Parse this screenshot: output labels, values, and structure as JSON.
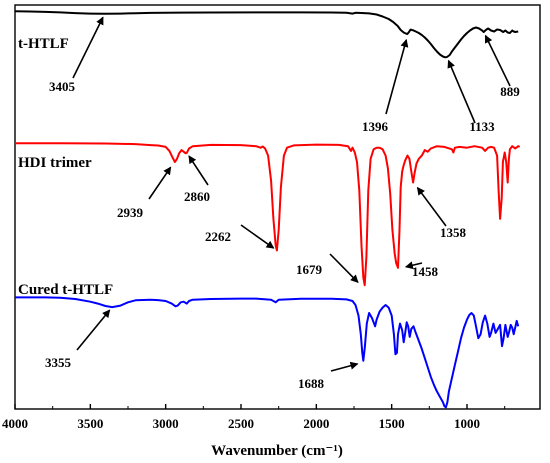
{
  "chart_data": {
    "type": "line",
    "xlabel": "Wavenumber (cm⁻¹)",
    "xlim": [
      4000,
      650
    ],
    "x_reversed": true,
    "y_ticks_shown": false,
    "grid": false,
    "legend": "none",
    "xticks": [
      4000,
      3500,
      3000,
      2500,
      2000,
      1500,
      1000
    ],
    "series": [
      {
        "name": "t-HTLF",
        "color": "#000000",
        "points": [
          [
            4000,
            0.35
          ],
          [
            3900,
            0.5
          ],
          [
            3800,
            0.9
          ],
          [
            3700,
            1.4
          ],
          [
            3600,
            2.1
          ],
          [
            3500,
            2.6
          ],
          [
            3405,
            2.8
          ],
          [
            3300,
            2.6
          ],
          [
            3200,
            2.2
          ],
          [
            3100,
            1.9
          ],
          [
            3000,
            1.7
          ],
          [
            2900,
            1.6
          ],
          [
            2700,
            1.5
          ],
          [
            2400,
            1.4
          ],
          [
            2100,
            1.4
          ],
          [
            1900,
            1.5
          ],
          [
            1800,
            1.7
          ],
          [
            1760,
            2.6
          ],
          [
            1740,
            1.8
          ],
          [
            1700,
            2.0
          ],
          [
            1650,
            2.4
          ],
          [
            1600,
            3.5
          ],
          [
            1560,
            5.5
          ],
          [
            1520,
            8.0
          ],
          [
            1490,
            11.0
          ],
          [
            1460,
            15.0
          ],
          [
            1440,
            19.0
          ],
          [
            1420,
            21.5
          ],
          [
            1405,
            22.6
          ],
          [
            1396,
            23.0
          ],
          [
            1385,
            21.0
          ],
          [
            1375,
            18.6
          ],
          [
            1360,
            19.2
          ],
          [
            1340,
            20.5
          ],
          [
            1320,
            22.0
          ],
          [
            1300,
            24.0
          ],
          [
            1280,
            26.5
          ],
          [
            1260,
            29.5
          ],
          [
            1240,
            33.0
          ],
          [
            1220,
            37.0
          ],
          [
            1200,
            40.5
          ],
          [
            1180,
            43.5
          ],
          [
            1160,
            45.5
          ],
          [
            1145,
            46.3
          ],
          [
            1133,
            46.0
          ],
          [
            1115,
            44.0
          ],
          [
            1100,
            40.5
          ],
          [
            1080,
            36.5
          ],
          [
            1060,
            32.5
          ],
          [
            1040,
            28.5
          ],
          [
            1020,
            25.0
          ],
          [
            1000,
            22.0
          ],
          [
            980,
            19.5
          ],
          [
            960,
            17.5
          ],
          [
            940,
            16.5
          ],
          [
            920,
            17.5
          ],
          [
            900,
            19.5
          ],
          [
            889,
            21.0
          ],
          [
            875,
            19.0
          ],
          [
            860,
            17.5
          ],
          [
            840,
            19.5
          ],
          [
            820,
            20.5
          ],
          [
            800,
            18.5
          ],
          [
            780,
            19.0
          ],
          [
            760,
            21.0
          ],
          [
            745,
            19.5
          ],
          [
            730,
            21.5
          ],
          [
            715,
            22.0
          ],
          [
            700,
            19.5
          ],
          [
            690,
            20.5
          ],
          [
            680,
            21.0
          ],
          [
            660,
            20.5
          ]
        ]
      },
      {
        "name": "HDI trimer",
        "color": "#ff0000",
        "points": [
          [
            4000,
            0.1
          ],
          [
            3700,
            0.1
          ],
          [
            3400,
            0.3
          ],
          [
            3200,
            0.7
          ],
          [
            3100,
            1.3
          ],
          [
            3050,
            1.6
          ],
          [
            3000,
            2.5
          ],
          [
            2975,
            5.0
          ],
          [
            2955,
            9.0
          ],
          [
            2939,
            12.0
          ],
          [
            2925,
            10.0
          ],
          [
            2910,
            6.5
          ],
          [
            2895,
            4.5
          ],
          [
            2880,
            5.5
          ],
          [
            2868,
            6.5
          ],
          [
            2860,
            6.2
          ],
          [
            2845,
            3.5
          ],
          [
            2820,
            2.0
          ],
          [
            2700,
            1.2
          ],
          [
            2500,
            1.3
          ],
          [
            2400,
            2.0
          ],
          [
            2370,
            3.0
          ],
          [
            2355,
            2.2
          ],
          [
            2340,
            3.5
          ],
          [
            2320,
            8.0
          ],
          [
            2300,
            24.0
          ],
          [
            2285,
            48.0
          ],
          [
            2270,
            65.0
          ],
          [
            2262,
            68.0
          ],
          [
            2250,
            55.0
          ],
          [
            2235,
            28.0
          ],
          [
            2215,
            8.0
          ],
          [
            2195,
            3.0
          ],
          [
            2150,
            1.5
          ],
          [
            2000,
            1.0
          ],
          [
            1850,
            1.2
          ],
          [
            1790,
            2.0
          ],
          [
            1770,
            5.0
          ],
          [
            1760,
            3.0
          ],
          [
            1745,
            6.0
          ],
          [
            1730,
            12.0
          ],
          [
            1715,
            30.0
          ],
          [
            1700,
            65.0
          ],
          [
            1688,
            85.0
          ],
          [
            1679,
            90.0
          ],
          [
            1668,
            72.0
          ],
          [
            1655,
            30.0
          ],
          [
            1640,
            10.0
          ],
          [
            1620,
            4.0
          ],
          [
            1600,
            3.0
          ],
          [
            1580,
            3.0
          ],
          [
            1560,
            4.0
          ],
          [
            1540,
            8.0
          ],
          [
            1525,
            16.0
          ],
          [
            1510,
            32.0
          ],
          [
            1495,
            55.0
          ],
          [
            1480,
            70.0
          ],
          [
            1470,
            76.0
          ],
          [
            1458,
            79.0
          ],
          [
            1448,
            55.0
          ],
          [
            1440,
            28.0
          ],
          [
            1430,
            18.0
          ],
          [
            1420,
            14.0
          ],
          [
            1410,
            11.0
          ],
          [
            1395,
            8.0
          ],
          [
            1382,
            10.0
          ],
          [
            1370,
            18.0
          ],
          [
            1358,
            25.0
          ],
          [
            1348,
            19.0
          ],
          [
            1335,
            13.0
          ],
          [
            1320,
            10.0
          ],
          [
            1300,
            8.0
          ],
          [
            1280,
            4.5
          ],
          [
            1260,
            5.5
          ],
          [
            1240,
            3.5
          ],
          [
            1200,
            2.0
          ],
          [
            1150,
            2.5
          ],
          [
            1100,
            4.0
          ],
          [
            1090,
            6.0
          ],
          [
            1080,
            3.0
          ],
          [
            1050,
            2.5
          ],
          [
            1000,
            3.0
          ],
          [
            950,
            2.0
          ],
          [
            900,
            3.0
          ],
          [
            880,
            5.0
          ],
          [
            860,
            3.0
          ],
          [
            840,
            2.5
          ],
          [
            820,
            3.0
          ],
          [
            800,
            8.0
          ],
          [
            790,
            30.0
          ],
          [
            780,
            48.0
          ],
          [
            770,
            35.0
          ],
          [
            762,
            12.0
          ],
          [
            750,
            6.0
          ],
          [
            740,
            12.0
          ],
          [
            730,
            25.0
          ],
          [
            722,
            10.0
          ],
          [
            715,
            4.0
          ],
          [
            700,
            2.0
          ],
          [
            680,
            3.5
          ],
          [
            660,
            2.0
          ],
          [
            650,
            2.5
          ]
        ]
      },
      {
        "name": "Cured t-HTLF",
        "color": "#0000ff",
        "points": [
          [
            4000,
            0.3
          ],
          [
            3800,
            0.3
          ],
          [
            3700,
            0.6
          ],
          [
            3600,
            1.5
          ],
          [
            3500,
            3.5
          ],
          [
            3450,
            5.0
          ],
          [
            3400,
            6.8
          ],
          [
            3355,
            7.6
          ],
          [
            3300,
            6.5
          ],
          [
            3250,
            4.0
          ],
          [
            3200,
            2.5
          ],
          [
            3100,
            2.0
          ],
          [
            3050,
            2.3
          ],
          [
            3000,
            3.0
          ],
          [
            2960,
            5.0
          ],
          [
            2935,
            7.0
          ],
          [
            2920,
            6.5
          ],
          [
            2900,
            4.0
          ],
          [
            2880,
            3.5
          ],
          [
            2860,
            5.0
          ],
          [
            2845,
            3.0
          ],
          [
            2820,
            2.0
          ],
          [
            2700,
            1.5
          ],
          [
            2500,
            1.2
          ],
          [
            2400,
            1.2
          ],
          [
            2300,
            2.0
          ],
          [
            2270,
            4.0
          ],
          [
            2250,
            2.0
          ],
          [
            2100,
            1.3
          ],
          [
            1900,
            1.3
          ],
          [
            1800,
            1.8
          ],
          [
            1760,
            3.0
          ],
          [
            1740,
            6.0
          ],
          [
            1720,
            14.0
          ],
          [
            1705,
            28.0
          ],
          [
            1695,
            42.0
          ],
          [
            1688,
            48.0
          ],
          [
            1678,
            38.0
          ],
          [
            1665,
            20.0
          ],
          [
            1650,
            12.0
          ],
          [
            1630,
            16.0
          ],
          [
            1610,
            22.0
          ],
          [
            1600,
            17.0
          ],
          [
            1580,
            11.0
          ],
          [
            1560,
            8.0
          ],
          [
            1540,
            6.0
          ],
          [
            1520,
            8.0
          ],
          [
            1500,
            14.0
          ],
          [
            1485,
            28.0
          ],
          [
            1475,
            43.0
          ],
          [
            1465,
            42.0
          ],
          [
            1458,
            28.0
          ],
          [
            1445,
            20.0
          ],
          [
            1430,
            25.0
          ],
          [
            1420,
            34.0
          ],
          [
            1410,
            27.0
          ],
          [
            1400,
            19.0
          ],
          [
            1390,
            22.0
          ],
          [
            1380,
            30.0
          ],
          [
            1370,
            24.0
          ],
          [
            1355,
            22.0
          ],
          [
            1340,
            27.0
          ],
          [
            1320,
            33.0
          ],
          [
            1300,
            39.0
          ],
          [
            1280,
            46.0
          ],
          [
            1260,
            53.0
          ],
          [
            1240,
            60.0
          ],
          [
            1220,
            66.0
          ],
          [
            1200,
            71.0
          ],
          [
            1180,
            75.0
          ],
          [
            1160,
            79.0
          ],
          [
            1150,
            82.0
          ],
          [
            1140,
            83.0
          ],
          [
            1130,
            79.0
          ],
          [
            1120,
            71.0
          ],
          [
            1100,
            61.0
          ],
          [
            1080,
            51.0
          ],
          [
            1060,
            41.0
          ],
          [
            1040,
            31.0
          ],
          [
            1020,
            23.0
          ],
          [
            1000,
            17.0
          ],
          [
            985,
            13.5
          ],
          [
            970,
            12.0
          ],
          [
            955,
            14.0
          ],
          [
            940,
            22.0
          ],
          [
            925,
            31.0
          ],
          [
            910,
            28.0
          ],
          [
            895,
            19.0
          ],
          [
            880,
            14.0
          ],
          [
            865,
            20.0
          ],
          [
            850,
            30.0
          ],
          [
            840,
            27.0
          ],
          [
            825,
            20.0
          ],
          [
            810,
            27.0
          ],
          [
            795,
            24.0
          ],
          [
            780,
            21.0
          ],
          [
            768,
            37.0
          ],
          [
            757,
            31.0
          ],
          [
            745,
            21.0
          ],
          [
            730,
            30.0
          ],
          [
            720,
            26.0
          ],
          [
            710,
            21.0
          ],
          [
            700,
            23.0
          ],
          [
            690,
            28.0
          ],
          [
            680,
            23.0
          ],
          [
            670,
            18.0
          ],
          [
            660,
            22.0
          ]
        ]
      }
    ],
    "annotations": [
      {
        "text": "3405",
        "series": 0,
        "x": 3405
      },
      {
        "text": "1396",
        "series": 0,
        "x": 1396
      },
      {
        "text": "1133",
        "series": 0,
        "x": 1133
      },
      {
        "text": "889",
        "series": 0,
        "x": 889
      },
      {
        "text": "2939",
        "series": 1,
        "x": 2939
      },
      {
        "text": "2860",
        "series": 1,
        "x": 2860
      },
      {
        "text": "2262",
        "series": 1,
        "x": 2262
      },
      {
        "text": "1679",
        "series": 1,
        "x": 1679
      },
      {
        "text": "1458",
        "series": 1,
        "x": 1458
      },
      {
        "text": "1358",
        "series": 1,
        "x": 1358
      },
      {
        "text": "3355",
        "series": 2,
        "x": 3355
      },
      {
        "text": "1688",
        "series": 2,
        "x": 1688
      }
    ]
  }
}
